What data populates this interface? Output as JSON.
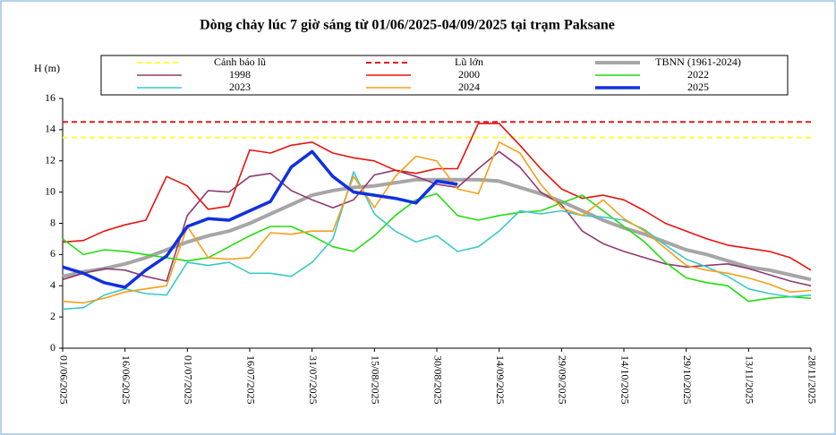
{
  "chart_data": {
    "type": "line",
    "title": "Dòng chảy lúc 7 giờ sáng từ 01/06/2025-04/09/2025 tại trạm Paksane",
    "y_label": "H (m)",
    "x": [
      "01/06/2025",
      null,
      null,
      "16/06/2025",
      null,
      null,
      "01/07/2025",
      null,
      null,
      "16/07/2025",
      null,
      null,
      "31/07/2025",
      null,
      null,
      "15/08/2025",
      null,
      null,
      "30/08/2025",
      null,
      null,
      "14/09/2025",
      null,
      null,
      "29/09/2025",
      null,
      null,
      "14/10/2025",
      null,
      null,
      "29/10/2025",
      null,
      null,
      "13/11/2025",
      null,
      null,
      "28/11/2025"
    ],
    "ylim": [
      0,
      16
    ],
    "yticks": [
      0,
      2,
      4,
      6,
      8,
      10,
      12,
      14,
      16
    ],
    "series": [
      {
        "name": "Cảnh báo lũ",
        "color": "#ffff33",
        "dash": true,
        "width": 2,
        "values": [
          13.5,
          13.5,
          13.5,
          13.5,
          13.5,
          13.5,
          13.5,
          13.5,
          13.5,
          13.5,
          13.5,
          13.5,
          13.5,
          13.5,
          13.5,
          13.5,
          13.5,
          13.5,
          13.5,
          13.5,
          13.5,
          13.5,
          13.5,
          13.5,
          13.5,
          13.5,
          13.5,
          13.5,
          13.5,
          13.5,
          13.5,
          13.5,
          13.5,
          13.5,
          13.5,
          13.5,
          13.5
        ]
      },
      {
        "name": "Lũ lớn",
        "color": "#e31a1c",
        "dash": true,
        "width": 2,
        "values": [
          14.5,
          14.5,
          14.5,
          14.5,
          14.5,
          14.5,
          14.5,
          14.5,
          14.5,
          14.5,
          14.5,
          14.5,
          14.5,
          14.5,
          14.5,
          14.5,
          14.5,
          14.5,
          14.5,
          14.5,
          14.5,
          14.5,
          14.5,
          14.5,
          14.5,
          14.5,
          14.5,
          14.5,
          14.5,
          14.5,
          14.5,
          14.5,
          14.5,
          14.5,
          14.5,
          14.5,
          14.5
        ]
      },
      {
        "name": "TBNN (1961-2024)",
        "color": "#a6a6a6",
        "width": 4,
        "values": [
          4.6,
          4.9,
          5.1,
          5.4,
          5.8,
          6.3,
          6.8,
          7.2,
          7.5,
          8.0,
          8.6,
          9.2,
          9.8,
          10.1,
          10.3,
          10.4,
          10.6,
          10.8,
          10.8,
          10.8,
          10.8,
          10.7,
          10.3,
          9.9,
          9.4,
          8.8,
          8.2,
          7.7,
          7.3,
          6.8,
          6.3,
          6.0,
          5.6,
          5.2,
          5.0,
          4.7,
          4.4
        ]
      },
      {
        "name": "1998",
        "color": "#8e3a73",
        "width": 1.6,
        "values": [
          4.4,
          4.8,
          5.1,
          5.0,
          4.6,
          4.3,
          8.5,
          10.1,
          10.0,
          11.0,
          11.2,
          10.1,
          9.5,
          9.0,
          9.5,
          11.1,
          11.4,
          11.0,
          10.5,
          10.3,
          11.5,
          12.6,
          11.6,
          10.0,
          9.2,
          7.5,
          6.7,
          6.2,
          5.8,
          5.4,
          5.2,
          5.3,
          5.4,
          5.1,
          4.7,
          4.3,
          4.0
        ]
      },
      {
        "name": "2000",
        "color": "#e8130c",
        "width": 1.6,
        "values": [
          6.8,
          6.9,
          7.5,
          7.9,
          8.2,
          11.0,
          10.4,
          8.9,
          9.1,
          12.7,
          12.5,
          13.0,
          13.2,
          12.5,
          12.2,
          12.0,
          11.4,
          11.2,
          11.5,
          11.5,
          14.4,
          14.4,
          13.0,
          11.5,
          10.2,
          9.6,
          9.8,
          9.5,
          8.8,
          8.0,
          7.5,
          7.0,
          6.6,
          6.4,
          6.2,
          5.8,
          5.0
        ]
      },
      {
        "name": "2022",
        "color": "#22dd11",
        "width": 1.6,
        "values": [
          7.0,
          6.0,
          6.3,
          6.2,
          6.0,
          5.8,
          5.6,
          5.8,
          6.5,
          7.2,
          7.8,
          7.8,
          7.2,
          6.5,
          6.2,
          7.2,
          8.5,
          9.5,
          9.9,
          8.5,
          8.2,
          8.5,
          8.7,
          8.8,
          9.3,
          9.8,
          8.8,
          7.8,
          6.8,
          5.5,
          4.5,
          4.2,
          4.0,
          3.0,
          3.2,
          3.3,
          3.2
        ]
      },
      {
        "name": "2023",
        "color": "#3cc8c8",
        "width": 1.6,
        "values": [
          2.5,
          2.6,
          3.4,
          3.8,
          3.5,
          3.4,
          5.5,
          5.3,
          5.5,
          4.8,
          4.8,
          4.6,
          5.5,
          7.0,
          11.3,
          8.6,
          7.5,
          6.8,
          7.2,
          6.2,
          6.5,
          7.5,
          8.8,
          8.6,
          8.8,
          8.5,
          8.4,
          8.2,
          7.6,
          6.6,
          5.7,
          5.2,
          4.6,
          3.8,
          3.5,
          3.3,
          3.4
        ]
      },
      {
        "name": "2024",
        "color": "#f5a01a",
        "width": 1.6,
        "values": [
          3.0,
          2.9,
          3.2,
          3.6,
          3.8,
          4.0,
          7.8,
          5.8,
          5.7,
          5.8,
          7.4,
          7.3,
          7.5,
          7.5,
          11.0,
          9.0,
          11.0,
          12.3,
          12.0,
          10.2,
          9.9,
          13.2,
          12.5,
          10.5,
          9.0,
          8.5,
          9.5,
          8.3,
          7.5,
          6.4,
          5.3,
          5.0,
          4.8,
          4.5,
          4.1,
          3.6,
          3.7
        ]
      },
      {
        "name": "2025",
        "color": "#1030e0",
        "width": 3.5,
        "values": [
          5.2,
          4.8,
          4.2,
          3.9,
          5.0,
          5.9,
          7.8,
          8.3,
          8.2,
          8.8,
          9.4,
          11.6,
          12.6,
          11.0,
          10.0,
          9.8,
          9.6,
          9.3,
          10.7,
          10.5,
          null,
          null,
          null,
          null,
          null,
          null,
          null,
          null,
          null,
          null,
          null,
          null,
          null,
          null,
          null,
          null,
          null
        ]
      }
    ]
  }
}
